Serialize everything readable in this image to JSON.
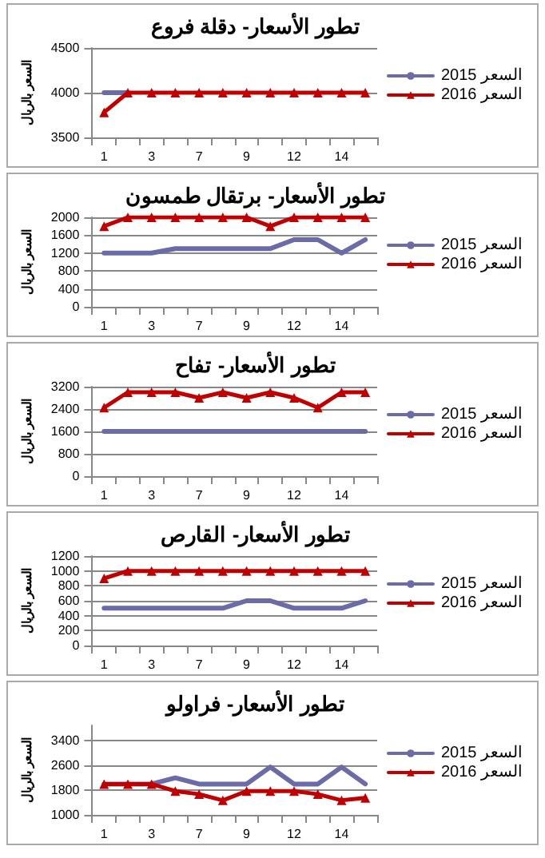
{
  "chart_data": [
    {
      "type": "line",
      "title": "تطور الأسعار- دقلة فروع",
      "ylabel": "السعر بالريال",
      "categories": [
        "1",
        null,
        "3",
        null,
        "7",
        null,
        "9",
        null,
        "12",
        null,
        "14",
        null
      ],
      "ylim": [
        3500,
        4500
      ],
      "yticks": [
        3500,
        4000,
        4500
      ],
      "grid": "y",
      "legend": "right",
      "series": [
        {
          "name": "2015 السعر",
          "color": "#6b6ba8",
          "marker": "none",
          "values": [
            4000,
            4000,
            null,
            null,
            null,
            null,
            null,
            null,
            null,
            null,
            null,
            null
          ]
        },
        {
          "name": "2016 السعر",
          "color": "#c00000",
          "marker": "triangle",
          "values": [
            3780,
            4000,
            4000,
            4000,
            4000,
            4000,
            4000,
            4000,
            4000,
            4000,
            4000,
            4000
          ]
        }
      ]
    },
    {
      "type": "line",
      "title": "تطور الأسعار- برتقال طمسون",
      "ylabel": "السعر بالريال",
      "categories": [
        "1",
        null,
        "3",
        null,
        "7",
        null,
        "9",
        null,
        "12",
        null,
        "14",
        null
      ],
      "ylim": [
        0,
        2000
      ],
      "yticks": [
        0,
        400,
        800,
        1200,
        1600,
        2000
      ],
      "grid": "y",
      "legend": "right",
      "series": [
        {
          "name": "2015 السعر",
          "color": "#6b6ba8",
          "marker": "none",
          "values": [
            1200,
            1200,
            1200,
            1300,
            1300,
            1300,
            1300,
            1300,
            1500,
            1500,
            1200,
            1500
          ]
        },
        {
          "name": "2016 السعر",
          "color": "#c00000",
          "marker": "triangle",
          "values": [
            1800,
            2000,
            2000,
            2000,
            2000,
            2000,
            2000,
            1800,
            2000,
            2000,
            2000,
            2000
          ]
        }
      ]
    },
    {
      "type": "line",
      "title": "تطور الأسعار- تفاح",
      "ylabel": "السعر بالريال",
      "categories": [
        "1",
        null,
        "3",
        null,
        "7",
        null,
        "9",
        null,
        "12",
        null,
        "14",
        null
      ],
      "ylim": [
        0,
        3200
      ],
      "yticks": [
        0,
        800,
        1600,
        2400,
        3200
      ],
      "grid": "y",
      "legend": "right",
      "series": [
        {
          "name": "2015 السعر",
          "color": "#6b6ba8",
          "marker": "none",
          "values": [
            1600,
            1600,
            1600,
            1600,
            1600,
            1600,
            1600,
            1600,
            1600,
            1600,
            1600,
            1600
          ]
        },
        {
          "name": "2016 السعر",
          "color": "#c00000",
          "marker": "triangle",
          "values": [
            2450,
            3000,
            3000,
            3000,
            2800,
            3000,
            2800,
            3000,
            2800,
            2450,
            3000,
            3000
          ]
        }
      ]
    },
    {
      "type": "line",
      "title": "تطور الأسعار- القارص",
      "ylabel": "السعر بالريال",
      "categories": [
        "1",
        null,
        "3",
        null,
        "7",
        null,
        "9",
        null,
        "12",
        null,
        "14",
        null
      ],
      "ylim": [
        0,
        1200
      ],
      "yticks": [
        0,
        200,
        400,
        600,
        800,
        1000,
        1200
      ],
      "grid": "y",
      "legend": "right",
      "series": [
        {
          "name": "2015 السعر",
          "color": "#6b6ba8",
          "marker": "none",
          "values": [
            500,
            500,
            500,
            500,
            500,
            500,
            600,
            600,
            500,
            500,
            500,
            600
          ]
        },
        {
          "name": "2016 السعر",
          "color": "#c00000",
          "marker": "triangle",
          "values": [
            900,
            1000,
            1000,
            1000,
            1000,
            1000,
            1000,
            1000,
            1000,
            1000,
            1000,
            1000
          ]
        }
      ]
    },
    {
      "type": "line",
      "title": "تطور الأسعار- فراولو",
      "ylabel": "السعر بالريال",
      "categories": [
        "1",
        null,
        "3",
        null,
        "7",
        null,
        "9",
        null,
        "12",
        null,
        "14",
        null
      ],
      "ylim": [
        1000,
        3900
      ],
      "yticks": [
        1000,
        1800,
        2600,
        3400
      ],
      "grid": "y",
      "legend": "right",
      "series": [
        {
          "name": "2015 السعر",
          "color": "#6b6ba8",
          "marker": "none",
          "values": [
            2000,
            2000,
            2000,
            2200,
            2000,
            2000,
            2000,
            2550,
            2000,
            2000,
            2550,
            2000
          ]
        },
        {
          "name": "2016 السعر",
          "color": "#c00000",
          "marker": "triangle",
          "values": [
            2000,
            2000,
            2000,
            1770,
            1670,
            1470,
            1770,
            1770,
            1770,
            1670,
            1470,
            1550
          ]
        }
      ]
    }
  ]
}
